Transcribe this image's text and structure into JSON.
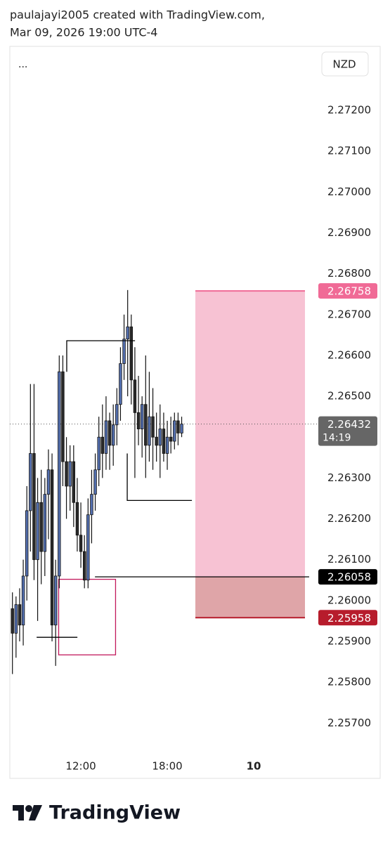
{
  "header": {
    "line1": "paulajayi2005 created with TradingView.com,",
    "line2": "Mar 09, 2026 19:00 UTC-4"
  },
  "footer": {
    "brand": "TradingView"
  },
  "chart_data": {
    "type": "candlestick",
    "menu": "...",
    "currency": "NZD",
    "up_color": "#5470b0",
    "down_color": "#2a2a2a",
    "x": [
      7.25,
      7.5,
      7.75,
      8,
      8.25,
      8.5,
      8.75,
      9,
      9.25,
      9.5,
      9.75,
      10,
      10.25,
      10.5,
      10.75,
      11,
      11.25,
      11.5,
      11.75,
      12,
      12.25,
      12.5,
      12.75,
      13,
      13.25,
      13.5,
      13.75,
      14,
      14.25,
      14.5,
      14.75,
      15,
      15.25,
      15.5,
      15.75,
      16,
      16.25,
      16.5,
      16.75,
      17,
      17.25,
      17.5,
      17.75,
      18,
      18.25,
      18.5,
      18.75,
      19
    ],
    "open": [
      2.2598,
      2.2592,
      2.2599,
      2.2594,
      2.2606,
      2.2622,
      2.2636,
      2.261,
      2.2624,
      2.2612,
      2.2626,
      2.2632,
      2.2594,
      2.2606,
      2.2656,
      2.2634,
      2.2628,
      2.2634,
      2.2624,
      2.2616,
      2.2612,
      2.2605,
      2.2621,
      2.2626,
      2.2632,
      2.264,
      2.2636,
      2.2644,
      2.2638,
      2.2643,
      2.2648,
      2.2658,
      2.2664,
      2.2667,
      2.2654,
      2.2646,
      2.2642,
      2.2648,
      2.2638,
      2.2645,
      2.264,
      2.2638,
      2.2642,
      2.2636,
      2.264,
      2.2639,
      2.2644,
      2.2641
    ],
    "high": [
      2.2602,
      2.2601,
      2.2603,
      2.261,
      2.2628,
      2.2653,
      2.2653,
      2.263,
      2.2632,
      2.263,
      2.2637,
      2.2636,
      2.261,
      2.266,
      2.266,
      2.264,
      2.2638,
      2.2638,
      2.263,
      2.2624,
      2.2616,
      2.2625,
      2.2632,
      2.2636,
      2.2645,
      2.2648,
      2.265,
      2.2646,
      2.2648,
      2.2652,
      2.2662,
      2.267,
      2.2676,
      2.267,
      2.2662,
      2.2655,
      2.265,
      2.266,
      2.2656,
      2.2652,
      2.2646,
      2.2648,
      2.2646,
      2.2644,
      2.2645,
      2.2646,
      2.2646,
      2.2645
    ],
    "low": [
      2.2582,
      2.2586,
      2.259,
      2.2589,
      2.26,
      2.2612,
      2.2605,
      2.2595,
      2.2604,
      2.2606,
      2.2615,
      2.259,
      2.2584,
      2.2603,
      2.2628,
      2.262,
      2.2622,
      2.2618,
      2.2612,
      2.2608,
      2.2603,
      2.2603,
      2.2614,
      2.2622,
      2.2628,
      2.263,
      2.2632,
      2.2632,
      2.2633,
      2.2638,
      2.2644,
      2.2654,
      2.265,
      2.2648,
      2.263,
      2.2638,
      2.2635,
      2.263,
      2.2634,
      2.2632,
      2.2634,
      2.263,
      2.2634,
      2.2632,
      2.2636,
      2.2637,
      2.2638,
      2.264
    ],
    "close": [
      2.2592,
      2.2599,
      2.2594,
      2.2606,
      2.2622,
      2.2636,
      2.261,
      2.2624,
      2.2612,
      2.2626,
      2.2632,
      2.2594,
      2.2606,
      2.2656,
      2.2634,
      2.2628,
      2.2634,
      2.2624,
      2.2616,
      2.2612,
      2.2605,
      2.2621,
      2.2626,
      2.2632,
      2.264,
      2.2636,
      2.2644,
      2.2638,
      2.2643,
      2.2648,
      2.2658,
      2.2664,
      2.2667,
      2.2654,
      2.2646,
      2.2642,
      2.2648,
      2.2638,
      2.2645,
      2.264,
      2.2638,
      2.2642,
      2.2636,
      2.264,
      2.2639,
      2.2644,
      2.2641,
      2.26432
    ],
    "xlim": [
      7.07,
      32.78
    ],
    "xticks": [
      {
        "value": 12,
        "label": "12:00"
      },
      {
        "value": 18,
        "label": "18:00"
      },
      {
        "value": 24,
        "label": "10"
      }
    ],
    "ylim": [
      2.2563,
      2.2736
    ],
    "yticks": [
      {
        "value": 2.257,
        "label": "2.25700"
      },
      {
        "value": 2.258,
        "label": "2.25800"
      },
      {
        "value": 2.259,
        "label": "2.25900"
      },
      {
        "value": 2.26,
        "label": "2.26000"
      },
      {
        "value": 2.261,
        "label": "2.26100"
      },
      {
        "value": 2.262,
        "label": "2.26200"
      },
      {
        "value": 2.263,
        "label": "2.26300"
      },
      {
        "value": 2.265,
        "label": "2.26500"
      },
      {
        "value": 2.266,
        "label": "2.26600"
      },
      {
        "value": 2.267,
        "label": "2.26700"
      },
      {
        "value": 2.268,
        "label": "2.26800"
      },
      {
        "value": 2.269,
        "label": "2.26900"
      },
      {
        "value": 2.27,
        "label": "2.27000"
      },
      {
        "value": 2.271,
        "label": "2.27100"
      },
      {
        "value": 2.272,
        "label": "2.27200"
      }
    ],
    "current_price": {
      "value": 2.26432,
      "countdown": "14:19",
      "color": "#666666"
    },
    "position": {
      "x": [
        19.95,
        27.56
      ],
      "target": 2.26758,
      "entry": 2.26058,
      "stop": 2.25958,
      "target_color": "#f06a96",
      "entry_color": "#000000",
      "stop_color": "#b71c2c",
      "profit_fill": "#f7c2d3",
      "loss_fill": "#dfa5a8"
    },
    "drawings": [
      {
        "x": [
          8.93,
          11.76
        ],
        "y": [
          2.2591,
          2.2591
        ],
        "color": "#000000"
      },
      {
        "x": [
          11.02,
          11.02,
          15.76
        ],
        "y": [
          2.2656,
          2.26636,
          2.26636
        ],
        "color": "#000000"
      },
      {
        "x": [
          15.22,
          15.22,
          19.71
        ],
        "y": [
          2.2636,
          2.26245,
          2.26245
        ],
        "color": "#000000"
      },
      {
        "x": [
          12.98,
          27.85
        ],
        "y": [
          2.26058,
          2.26058
        ],
        "color": "#000000"
      }
    ],
    "boxes": [
      {
        "x": [
          10.46,
          14.41
        ],
        "y": [
          2.26052,
          2.25867
        ],
        "color": "#c2185b"
      }
    ]
  }
}
